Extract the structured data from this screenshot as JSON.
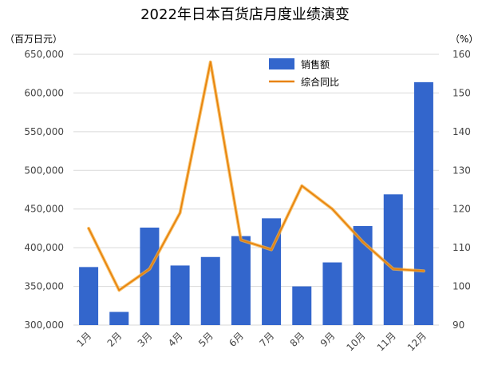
{
  "chart_data": {
    "type": "bar",
    "title": "2022年日本百货店月度业绩演变",
    "y_left_unit": "（百万日元）",
    "y_right_unit": "（%）",
    "categories": [
      "1月",
      "2月",
      "3月",
      "4月",
      "5月",
      "6月",
      "7月",
      "8月",
      "9月",
      "10月",
      "11月",
      "12月"
    ],
    "series": [
      {
        "name": "销售额",
        "type": "bar",
        "axis": "left",
        "color": "#3366cc",
        "values": [
          375000,
          317000,
          426000,
          377000,
          388000,
          415000,
          438000,
          350000,
          381000,
          428000,
          469000,
          614000
        ]
      },
      {
        "name": "综合同比",
        "type": "line",
        "axis": "right",
        "color": "#e8830c",
        "values": [
          115.0,
          99.0,
          104.5,
          119.0,
          158.0,
          112.0,
          109.5,
          126.0,
          120.0,
          111.5,
          104.5,
          104.0
        ]
      }
    ],
    "y_left": {
      "range": [
        300000,
        650000
      ],
      "ticks": [
        "300,000",
        "350,000",
        "400,000",
        "450,000",
        "500,000",
        "550,000",
        "600,000",
        "650,000"
      ]
    },
    "y_right": {
      "range": [
        90,
        160
      ],
      "ticks": [
        "90",
        "100",
        "110",
        "120",
        "130",
        "140",
        "150",
        "160"
      ]
    },
    "grid": true,
    "legend_position": "top-center"
  }
}
